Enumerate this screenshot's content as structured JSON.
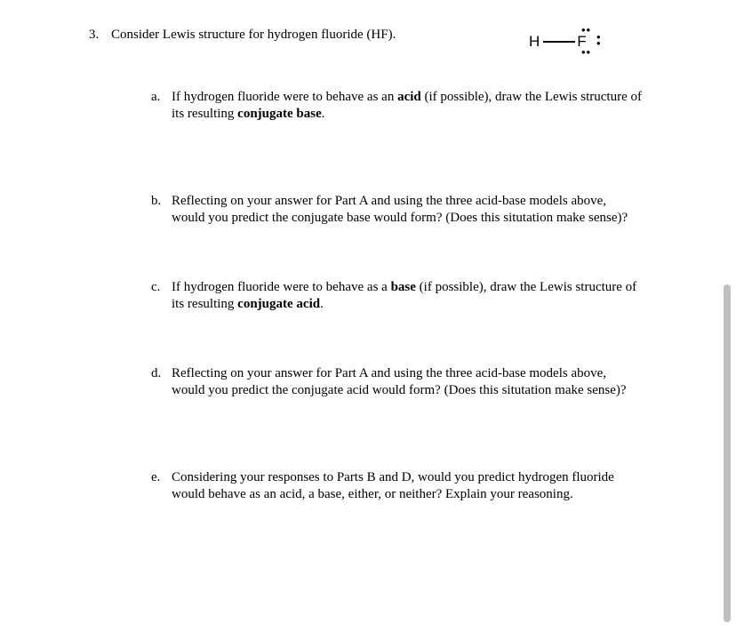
{
  "question": {
    "number": "3.",
    "prompt": "Consider Lewis structure for hydrogen fluoride (HF)."
  },
  "diagram": {
    "left_atom": "H",
    "right_atom": "F"
  },
  "parts": {
    "a": {
      "letter": "a.",
      "text": "If hydrogen fluoride were to behave as an <b>acid</b> (if possible), draw the Lewis structure of its resulting <b>conjugate base</b>."
    },
    "b": {
      "letter": "b.",
      "text": "Reflecting on your answer for Part A and using the three acid-base models above, would you predict the conjugate base would form? (Does this situtation make sense)?"
    },
    "c": {
      "letter": "c.",
      "text": "If hydrogen fluoride were to behave as a <b>base</b> (if possible), draw the Lewis structure of its resulting <b>conjugate acid</b>."
    },
    "d": {
      "letter": "d.",
      "text": "Reflecting on your answer for Part A and using the three acid-base models above, would you predict the conjugate acid would form? (Does this situtation make sense)?"
    },
    "e": {
      "letter": "e.",
      "text": "Considering your responses to Parts B and D, would you predict hydrogen fluoride would behave as an acid, a base, either, or neither? Explain your reasoning."
    }
  }
}
